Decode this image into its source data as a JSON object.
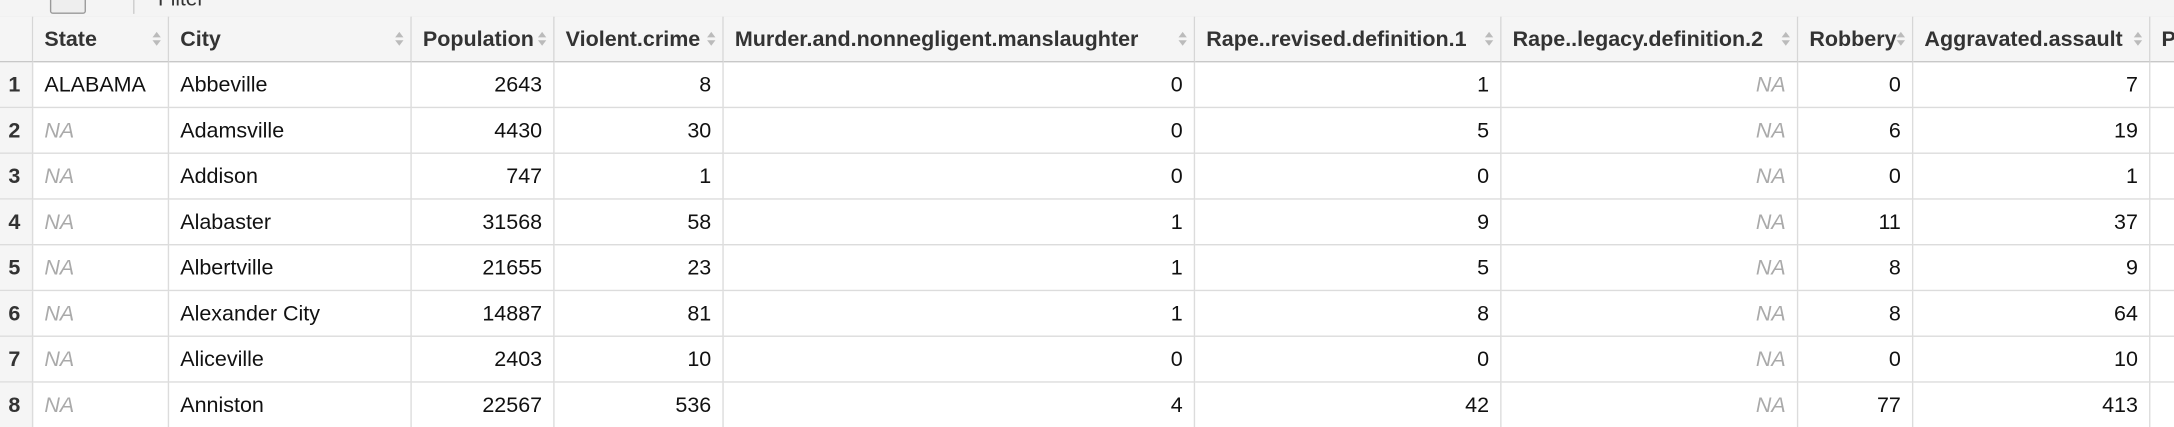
{
  "toolbar": {
    "filter": "Filter"
  },
  "table": {
    "columns": [
      "State",
      "City",
      "Population",
      "Violent.crime",
      "Murder.and.nonnegligent.manslaughter",
      "Rape..revised.definition.1",
      "Rape..legacy.definition.2",
      "Robbery",
      "Aggravated.assault",
      "P"
    ],
    "rows": [
      {
        "n": 1,
        "cells": [
          "ALABAMA",
          "Abbeville",
          2643,
          8,
          0,
          1,
          "NA",
          0,
          7
        ]
      },
      {
        "n": 2,
        "cells": [
          "NA",
          "Adamsville",
          4430,
          30,
          0,
          5,
          "NA",
          6,
          19
        ]
      },
      {
        "n": 3,
        "cells": [
          "NA",
          "Addison",
          747,
          1,
          0,
          0,
          "NA",
          0,
          1
        ]
      },
      {
        "n": 4,
        "cells": [
          "NA",
          "Alabaster",
          31568,
          58,
          1,
          9,
          "NA",
          11,
          37
        ]
      },
      {
        "n": 5,
        "cells": [
          "NA",
          "Albertville",
          21655,
          23,
          1,
          5,
          "NA",
          8,
          9
        ]
      },
      {
        "n": 6,
        "cells": [
          "NA",
          "Alexander City",
          14887,
          81,
          1,
          8,
          "NA",
          8,
          64
        ]
      },
      {
        "n": 7,
        "cells": [
          "NA",
          "Aliceville",
          2403,
          10,
          0,
          0,
          "NA",
          0,
          10
        ]
      },
      {
        "n": 8,
        "cells": [
          "NA",
          "Anniston",
          22567,
          536,
          4,
          42,
          "NA",
          77,
          413
        ]
      }
    ]
  }
}
